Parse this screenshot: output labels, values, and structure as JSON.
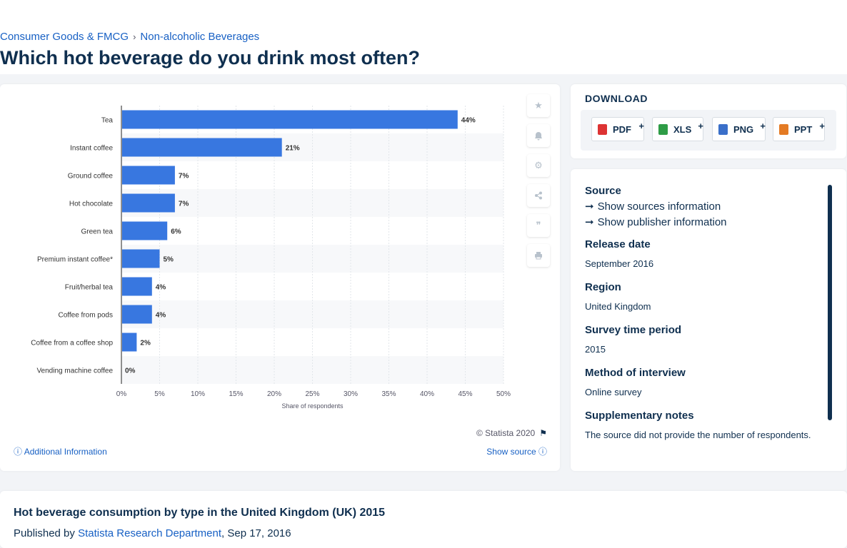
{
  "breadcrumb": {
    "items": [
      "Consumer Goods & FMCG",
      "Non-alcoholic Beverages"
    ]
  },
  "page_title": "Which hot beverage do you drink most often?",
  "chart_data": {
    "type": "bar",
    "orientation": "horizontal",
    "categories": [
      "Tea",
      "Instant coffee",
      "Ground coffee",
      "Hot chocolate",
      "Green tea",
      "Premium instant coffee*",
      "Fruit/herbal tea",
      "Coffee from pods",
      "Coffee from a coffee shop",
      "Vending machine coffee"
    ],
    "values": [
      44,
      21,
      7,
      7,
      6,
      5,
      4,
      4,
      2,
      0
    ],
    "value_labels": [
      "44%",
      "21%",
      "7%",
      "7%",
      "6%",
      "5%",
      "4%",
      "4%",
      "2%",
      "0%"
    ],
    "xlabel": "Share of respondents",
    "xlim": [
      0,
      50
    ],
    "xticks": [
      "0%",
      "5%",
      "10%",
      "15%",
      "20%",
      "25%",
      "30%",
      "35%",
      "40%",
      "45%",
      "50%"
    ],
    "bar_color": "#3877e0",
    "grid": true
  },
  "chart_footer": {
    "copyright": "© Statista 2020",
    "additional_info": "Additional Information",
    "show_source": "Show source"
  },
  "download": {
    "title": "DOWNLOAD",
    "buttons": [
      {
        "label": "PDF",
        "icon": "pdf-icon",
        "color": "#d33"
      },
      {
        "label": "XLS",
        "icon": "xls-icon",
        "color": "#2e9c46"
      },
      {
        "label": "PNG",
        "icon": "png-icon",
        "color": "#3a6fc9"
      },
      {
        "label": "PPT",
        "icon": "ppt-icon",
        "color": "#e47b24"
      }
    ],
    "plus": "+"
  },
  "source": {
    "source_label": "Source",
    "show_sources": "Show sources information",
    "show_publisher": "Show publisher information",
    "release_date_label": "Release date",
    "release_date": "September 2016",
    "region_label": "Region",
    "region": "United Kingdom",
    "survey_period_label": "Survey time period",
    "survey_period": "2015",
    "method_label": "Method of interview",
    "method": "Online survey",
    "notes_label": "Supplementary notes",
    "notes": "The source did not provide the number of respondents."
  },
  "bottom": {
    "title": "Hot beverage consumption by type in the United Kingdom (UK) 2015",
    "published_by": "Published by",
    "publisher": "Statista Research Department",
    "date": ", Sep 17, 2016"
  }
}
